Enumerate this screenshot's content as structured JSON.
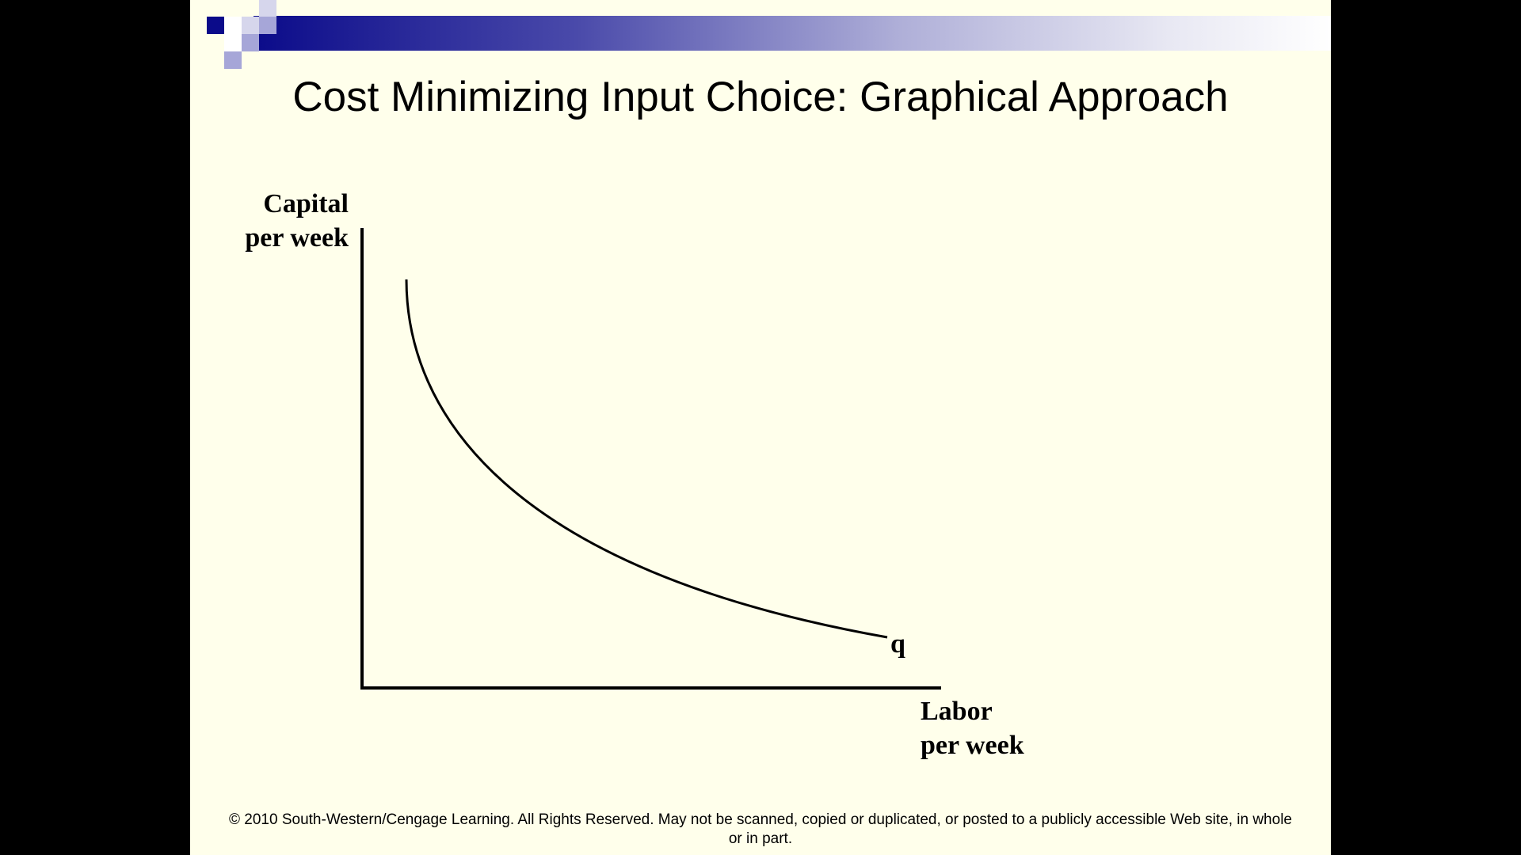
{
  "title": "Cost Minimizing Input Choice: Graphical Approach",
  "colors": {
    "slide_background": "#FFFFEB",
    "accent_dark": "#0B0B8A",
    "accent_light": "#A6A6D8"
  },
  "chart_data": {
    "type": "line",
    "title": "",
    "ylabel": [
      "Capital",
      "per week"
    ],
    "xlabel": [
      "Labor",
      "per week"
    ],
    "series": [
      {
        "name": "q",
        "kind": "isoquant",
        "shape": "convex curve decreasing toward the labor axis"
      }
    ],
    "grid": false
  },
  "footer": {
    "line1": "© 2010 South-Western/Cengage Learning. All Rights Reserved. May not be scanned, copied or duplicated, or posted to a publicly accessible Web site, in whole",
    "line2": "or in part."
  }
}
